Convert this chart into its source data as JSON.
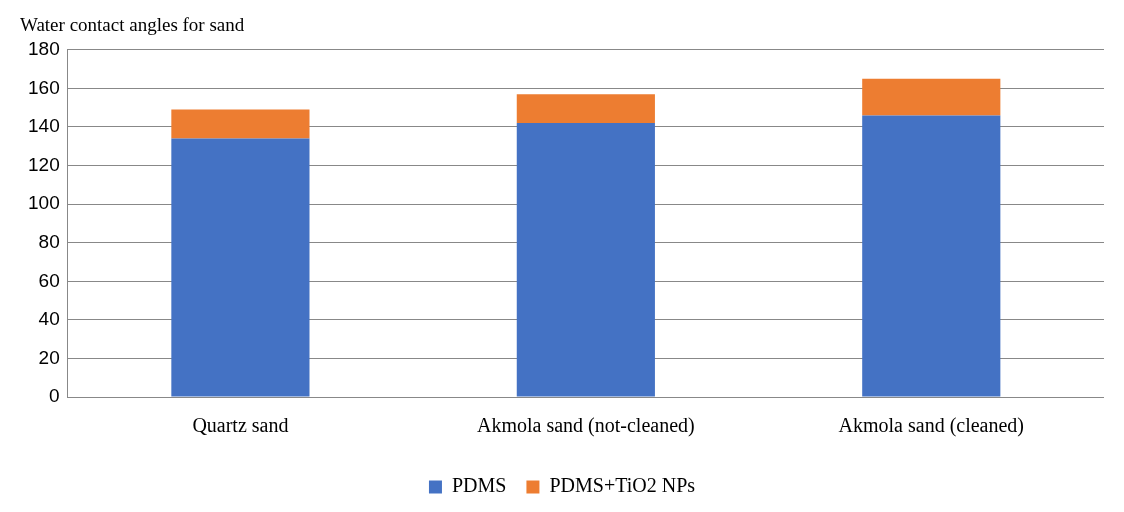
{
  "chart_data": {
    "type": "bar",
    "title": "Water contact angles for sand",
    "categories": [
      "Quartz sand",
      "Akmola sand (not-cleaned)",
      "Akmola sand (cleaned)"
    ],
    "stacked": true,
    "series": [
      {
        "name": "PDMS",
        "color": "#4472c4",
        "values": [
          134,
          142,
          146
        ]
      },
      {
        "name": "PDMS+TiO2 NPs",
        "color": "#ed7d31",
        "values": [
          15,
          15,
          19
        ]
      }
    ],
    "ylim": [
      0,
      180
    ],
    "yticks": [
      0,
      20,
      40,
      60,
      80,
      100,
      120,
      140,
      160,
      180
    ],
    "grid": "y",
    "legend": "bottom"
  }
}
